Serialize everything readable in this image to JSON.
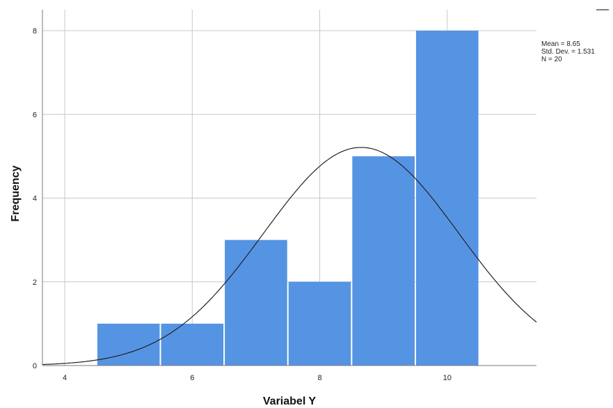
{
  "chart_data": {
    "type": "bar",
    "subtype": "histogram",
    "xlabel": "Variabel Y",
    "ylabel": "Frequency",
    "xlim": [
      3.65,
      11.4
    ],
    "ylim": [
      0,
      8.5
    ],
    "x_ticks": [
      4,
      6,
      8,
      10
    ],
    "y_ticks": [
      0,
      2,
      4,
      6,
      8
    ],
    "grid": true,
    "bin_width": 1,
    "bins": [
      {
        "center": 5,
        "value": 1
      },
      {
        "center": 6,
        "value": 1
      },
      {
        "center": 7,
        "value": 3
      },
      {
        "center": 8,
        "value": 2
      },
      {
        "center": 9,
        "value": 5
      },
      {
        "center": 10,
        "value": 8
      }
    ],
    "normal_curve": {
      "mean": 8.65,
      "sd": 1.531,
      "n": 20
    },
    "bar_color": "#5594e3",
    "stats_lines": [
      "Mean = 8.65",
      "Std. Dev. = 1.531",
      "N = 20"
    ],
    "stats_placement": "top-right"
  }
}
